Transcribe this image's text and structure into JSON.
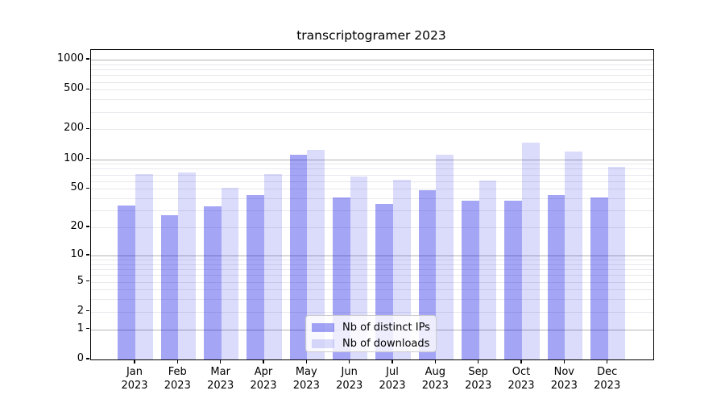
{
  "title": "transcriptogramer 2023",
  "chart_data": {
    "type": "bar",
    "title": "transcriptogramer 2023",
    "categories": [
      "Jan",
      "Feb",
      "Mar",
      "Apr",
      "May",
      "Jun",
      "Jul",
      "Aug",
      "Sep",
      "Oct",
      "Nov",
      "Dec"
    ],
    "x_year_line": "2023",
    "series": [
      {
        "name": "Nb of distinct IPs",
        "color": "rgba(10,10,230,0.37)",
        "values": [
          34,
          27,
          33,
          43,
          112,
          41,
          35,
          48,
          38,
          38,
          43,
          41
        ]
      },
      {
        "name": "Nb of downloads",
        "color": "rgba(10,10,230,0.145)",
        "values": [
          71,
          73,
          51,
          71,
          125,
          67,
          62,
          111,
          61,
          148,
          120,
          84
        ]
      }
    ],
    "y_scale": "log1p",
    "ylim": [
      0,
      1250
    ],
    "y_ticks_labeled": [
      0,
      1,
      2,
      5,
      10,
      20,
      50,
      100,
      200,
      500,
      1000
    ],
    "y_grid_major": [
      1,
      10,
      100,
      1000
    ],
    "y_grid_minor": [
      2,
      3,
      4,
      5,
      6,
      7,
      8,
      9,
      20,
      30,
      40,
      50,
      60,
      70,
      80,
      90,
      200,
      300,
      400,
      500,
      600,
      700,
      800,
      900
    ],
    "grid": true,
    "legend_position": "lower center",
    "xlabel": "",
    "ylabel": ""
  },
  "colors": {
    "grid_major": "#b3b3b3",
    "grid_minor": "#e9e9ee",
    "axis": "#000000",
    "legend_border": "#cccccc",
    "background": "#ffffff"
  }
}
